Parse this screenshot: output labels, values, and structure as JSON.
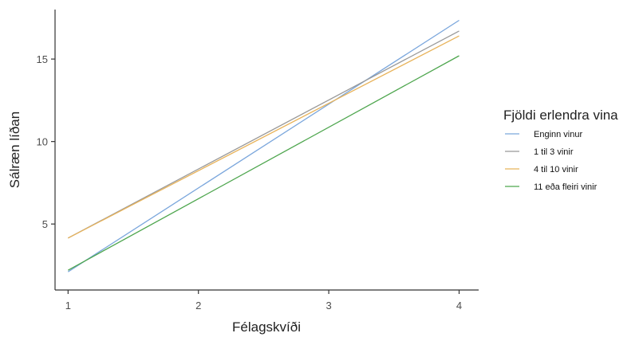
{
  "chart_data": {
    "type": "line",
    "xlabel": "Félagskvíði",
    "ylabel": "Sálræn líðan",
    "xlim": [
      0.9,
      4.15
    ],
    "ylim": [
      1.0,
      18.0
    ],
    "x_ticks": [
      1,
      2,
      3,
      4
    ],
    "y_ticks": [
      5,
      10,
      15
    ],
    "grid": false,
    "legend": {
      "title": "Fjöldi erlendra vina",
      "placement": "right"
    },
    "series": [
      {
        "name": "Enginn vinur",
        "color": "#7aa6dc",
        "x": [
          1,
          4
        ],
        "y": [
          2.1,
          17.35
        ]
      },
      {
        "name": "1 til 3 vinir",
        "color": "#999999",
        "x": [
          1,
          4
        ],
        "y": [
          4.15,
          16.7
        ]
      },
      {
        "name": "4 til 10 vinir",
        "color": "#e8b35a",
        "x": [
          1,
          4
        ],
        "y": [
          4.15,
          16.4
        ]
      },
      {
        "name": "11 eða fleiri vinir",
        "color": "#4ea64e",
        "x": [
          1,
          4
        ],
        "y": [
          2.2,
          15.2
        ]
      }
    ]
  }
}
